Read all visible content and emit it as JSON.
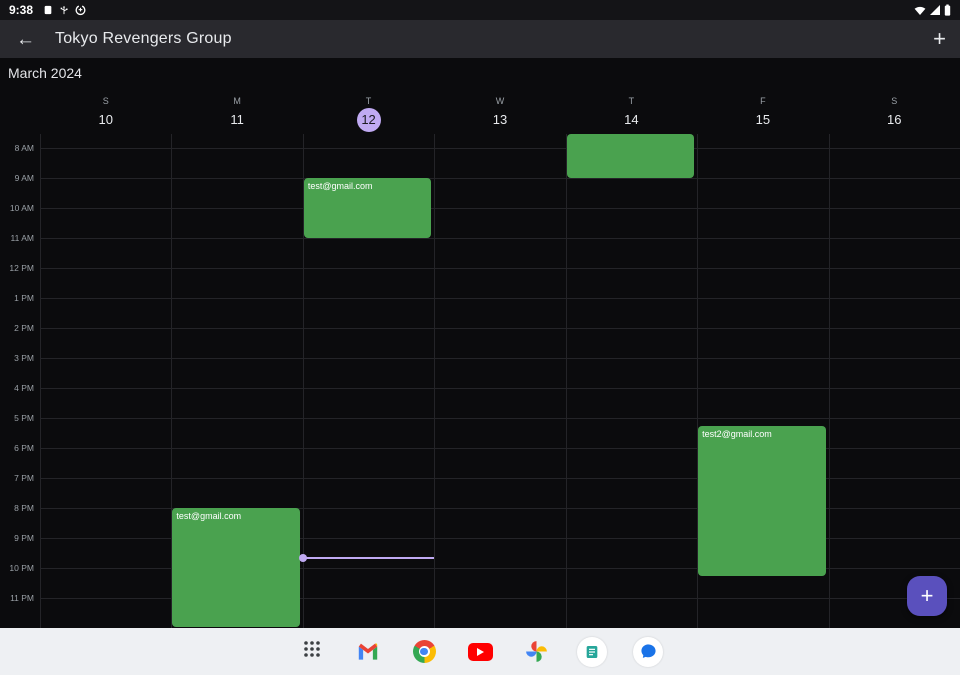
{
  "status_bar": {
    "time": "9:38",
    "notification_icons": [
      "storage-icon",
      "usb-icon",
      "data-saver-icon"
    ],
    "system_icons": [
      "wifi-icon",
      "cellular-icon",
      "battery-icon"
    ]
  },
  "app_bar": {
    "back_glyph": "←",
    "title": "Tokyo Revengers Group",
    "add_glyph": "+"
  },
  "calendar": {
    "month_label": "March 2024",
    "days": [
      {
        "letter": "S",
        "number": "10"
      },
      {
        "letter": "M",
        "number": "11"
      },
      {
        "letter": "T",
        "number": "12"
      },
      {
        "letter": "W",
        "number": "13"
      },
      {
        "letter": "T",
        "number": "14"
      },
      {
        "letter": "F",
        "number": "15"
      },
      {
        "letter": "S",
        "number": "16"
      }
    ],
    "selected_day_index": 2,
    "hours": [
      "8 AM",
      "9 AM",
      "10 AM",
      "11 AM",
      "12 PM",
      "1 PM",
      "2 PM",
      "3 PM",
      "4 PM",
      "5 PM",
      "6 PM",
      "7 PM",
      "8 PM",
      "9 PM",
      "10 PM",
      "11 PM"
    ],
    "events": [
      {
        "day": 1,
        "title": "test@gmail.com",
        "start": 20,
        "end": 23.95
      },
      {
        "day": 2,
        "title": "test@gmail.com",
        "start": 9,
        "end": 11
      },
      {
        "day": 4,
        "title": "",
        "start": 7.5,
        "end": 9
      },
      {
        "day": 5,
        "title": "test2@gmail.com",
        "start": 17.25,
        "end": 22.25
      }
    ],
    "now": {
      "day": 2,
      "time": 21.65
    },
    "colors": {
      "event": "#4aa24f",
      "accent": "#c0aaf2",
      "fab": "#5a50bd"
    }
  },
  "fab": {
    "glyph": "+"
  },
  "taskbar": {
    "apps": [
      "all-apps",
      "gmail",
      "chrome",
      "youtube",
      "photos",
      "notes",
      "messages"
    ]
  }
}
